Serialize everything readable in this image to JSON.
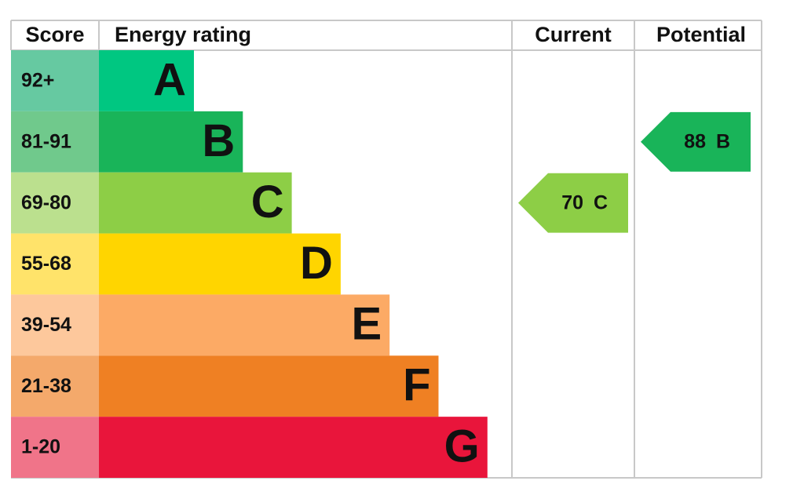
{
  "header": {
    "score": "Score",
    "energy_rating": "Energy rating",
    "current": "Current",
    "potential": "Potential"
  },
  "bands": [
    {
      "score": "92+",
      "letter": "A",
      "color": "#00c781",
      "score_color": "#66c9a1"
    },
    {
      "score": "81-91",
      "letter": "B",
      "color": "#19b459",
      "score_color": "#70c98c"
    },
    {
      "score": "69-80",
      "letter": "C",
      "color": "#8dce46",
      "score_color": "#bbe08e"
    },
    {
      "score": "55-68",
      "letter": "D",
      "color": "#ffd500",
      "score_color": "#ffe36a"
    },
    {
      "score": "39-54",
      "letter": "E",
      "color": "#fcaa65",
      "score_color": "#fdc89c"
    },
    {
      "score": "21-38",
      "letter": "F",
      "color": "#ef8023",
      "score_color": "#f4a96b"
    },
    {
      "score": "1-20",
      "letter": "G",
      "color": "#e9153b",
      "score_color": "#f07489"
    }
  ],
  "current": {
    "value": 70,
    "letter": "C",
    "band": 2
  },
  "potential": {
    "value": 88,
    "letter": "B",
    "band": 1
  }
}
